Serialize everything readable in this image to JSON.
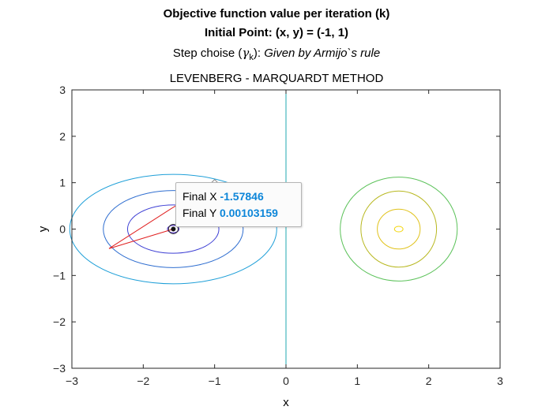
{
  "titles": {
    "line1": "Objective function value per iteration (k)",
    "line2": "Initial Point: (x, y) = (-1, 1)",
    "step_prefix": "Step choise (",
    "gamma": "γ",
    "gamma_sub": "k",
    "step_mid": "):  ",
    "step_rule": "Given by Armijo`s rule",
    "line4": "LEVENBERG - MARQUARDT METHOD"
  },
  "datatip": {
    "x_label": "Final X",
    "x_value": "-1.57846",
    "y_label": "Final Y",
    "y_value": "0.00103159"
  },
  "chart_data": {
    "type": "line",
    "xlabel": "x",
    "ylabel": "y",
    "xlim": [
      -3,
      3
    ],
    "ylim": [
      -3,
      3
    ],
    "xticks": [
      -3,
      -2,
      -1,
      0,
      1,
      2,
      3
    ],
    "yticks": [
      -3,
      -2,
      -1,
      0,
      1,
      2,
      3
    ],
    "grid": false,
    "contours": [
      {
        "center": [
          -1.58,
          0
        ],
        "radius_x": 1.45,
        "radius_y": 1.18,
        "color": "#1e9fd8"
      },
      {
        "center": [
          -1.58,
          0
        ],
        "radius_x": 0.98,
        "radius_y": 0.83,
        "color": "#2f6ed0"
      },
      {
        "center": [
          -1.58,
          0
        ],
        "radius_x": 0.64,
        "radius_y": 0.52,
        "color": "#3d3fd4"
      },
      {
        "center": [
          -1.58,
          0
        ],
        "radius_x": 0.08,
        "radius_y": 0.08,
        "color": "#3a18b8"
      },
      {
        "center": [
          1.58,
          0
        ],
        "radius_x": 0.82,
        "radius_y": 1.12,
        "color": "#5cc25a"
      },
      {
        "center": [
          1.58,
          0
        ],
        "radius_x": 0.53,
        "radius_y": 0.82,
        "color": "#b8b820"
      },
      {
        "center": [
          1.58,
          0
        ],
        "radius_x": 0.3,
        "radius_y": 0.43,
        "color": "#e0c21a"
      },
      {
        "center": [
          1.58,
          0
        ],
        "radius_x": 0.06,
        "radius_y": 0.06,
        "color": "#f3d60f"
      }
    ],
    "vertical_line": {
      "x": 0,
      "color": "#20a8b0"
    },
    "path": {
      "color": "#e02020",
      "points": [
        [
          -1,
          1
        ],
        [
          -1.6,
          0.45
        ],
        [
          -2.48,
          -0.42
        ],
        [
          -1.58,
          0.0
        ]
      ]
    },
    "start_point": [
      -1,
      1
    ],
    "final_point": [
      -1.57846,
      0.00103159
    ]
  }
}
